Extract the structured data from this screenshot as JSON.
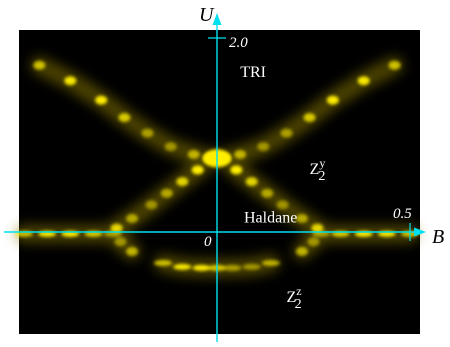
{
  "chart_data": {
    "type": "heatmap",
    "title": "",
    "xlabel": "B",
    "ylabel": "U",
    "xlim": [
      -0.5,
      0.5
    ],
    "ylim": [
      -1.7,
      2.0
    ],
    "ticks": {
      "x_zero": "0",
      "x_max": "0.5",
      "y_max": "2.0"
    },
    "colors": {
      "background": "#000000",
      "intensity": "#ffee00",
      "axes": "#00e0f0"
    },
    "region_labels": [
      {
        "id": "tri",
        "text": "TRI",
        "sub": "",
        "sup": "",
        "x": 0.06,
        "y": 1.6
      },
      {
        "id": "z2y",
        "text": "Z",
        "sub": "2",
        "sup": "y",
        "x": 0.24,
        "y": 0.6
      },
      {
        "id": "haldane",
        "text": "Haldane",
        "sub": "",
        "sup": "",
        "x": 0.07,
        "y": 0.1
      },
      {
        "id": "z2z",
        "text": "Z",
        "sub": "2",
        "sup": "z",
        "x": 0.18,
        "y": -0.72
      }
    ],
    "ridges": [
      {
        "name": "",
        "points": [
          [
            -0.46,
            1.72
          ],
          [
            -0.38,
            1.56
          ],
          [
            -0.3,
            1.36
          ],
          [
            -0.24,
            1.18
          ],
          [
            -0.18,
            1.02
          ],
          [
            -0.12,
            0.88
          ],
          [
            -0.06,
            0.8
          ],
          [
            -0.02,
            0.76
          ],
          [
            -0.05,
            0.64
          ],
          [
            -0.09,
            0.52
          ],
          [
            -0.13,
            0.4
          ],
          [
            -0.17,
            0.28
          ],
          [
            -0.22,
            0.14
          ],
          [
            -0.26,
            0.04
          ]
        ]
      },
      {
        "name": "",
        "points": [
          [
            0.46,
            1.72
          ],
          [
            0.38,
            1.56
          ],
          [
            0.3,
            1.36
          ],
          [
            0.24,
            1.18
          ],
          [
            0.18,
            1.02
          ],
          [
            0.12,
            0.88
          ],
          [
            0.06,
            0.8
          ],
          [
            0.02,
            0.76
          ],
          [
            0.05,
            0.64
          ],
          [
            0.09,
            0.52
          ],
          [
            0.13,
            0.4
          ],
          [
            0.17,
            0.28
          ],
          [
            0.22,
            0.14
          ],
          [
            0.26,
            0.04
          ]
        ]
      },
      {
        "name": "",
        "points": [
          [
            -0.5,
            -0.02
          ],
          [
            -0.44,
            -0.02
          ],
          [
            -0.38,
            -0.02
          ],
          [
            -0.32,
            -0.02
          ],
          [
            -0.27,
            -0.02
          ],
          [
            -0.25,
            -0.1
          ],
          [
            -0.22,
            -0.2
          ]
        ]
      },
      {
        "name": "",
        "points": [
          [
            0.5,
            -0.02
          ],
          [
            0.44,
            -0.02
          ],
          [
            0.38,
            -0.02
          ],
          [
            0.32,
            -0.02
          ],
          [
            0.27,
            -0.02
          ],
          [
            0.25,
            -0.1
          ],
          [
            0.22,
            -0.2
          ]
        ]
      },
      {
        "name": "",
        "points": [
          [
            -0.14,
            -0.32
          ],
          [
            -0.09,
            -0.36
          ],
          [
            -0.04,
            -0.37
          ],
          [
            0.0,
            -0.37
          ],
          [
            0.04,
            -0.37
          ],
          [
            0.09,
            -0.36
          ],
          [
            0.14,
            -0.32
          ]
        ]
      }
    ]
  }
}
